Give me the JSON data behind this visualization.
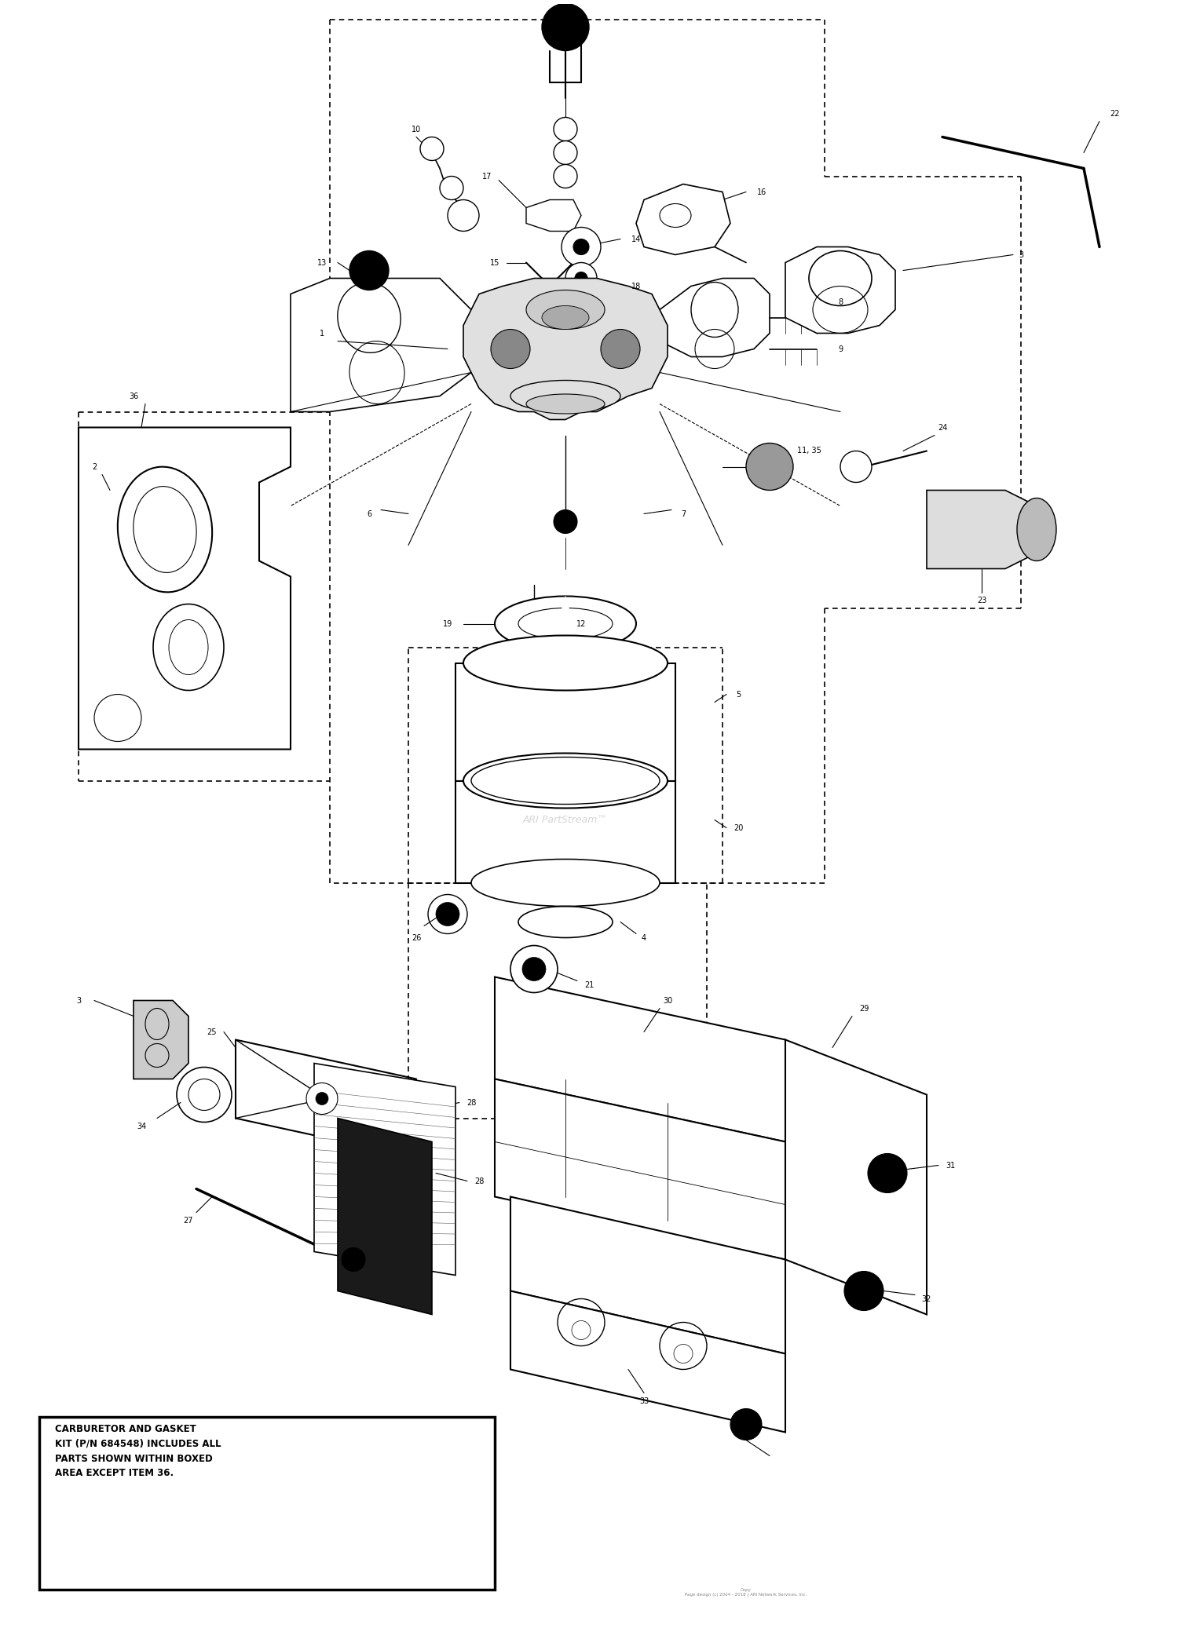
{
  "background_color": "#ffffff",
  "note_text": "CARBURETOR AND GASKET\nKIT (P/N 684548) INCLUDES ALL\nPARTS SHOWN WITHIN BOXED\nAREA EXCEPT ITEM 36.",
  "watermark": "ARI PartStream™",
  "copyright": "Copy\nPage design (c) 2004 - 2018 |\nARI Network Services, Inc.",
  "fig_width": 15.0,
  "fig_height": 20.79,
  "dpi": 100,
  "xlim": [
    0,
    150
  ],
  "ylim": [
    0,
    207
  ]
}
